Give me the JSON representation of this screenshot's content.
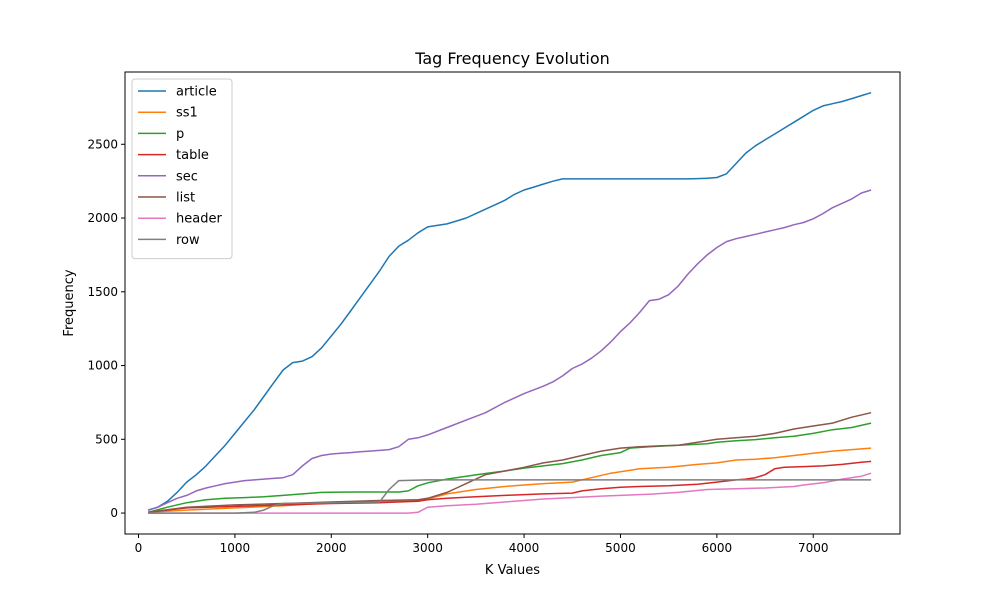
{
  "chart_data": {
    "type": "line",
    "title": "Tag Frequency Evolution",
    "xlabel": "K Values",
    "ylabel": "Frequency",
    "xlim": [
      -140,
      7900
    ],
    "ylim": [
      -142,
      2990
    ],
    "xticks": [
      0,
      1000,
      2000,
      3000,
      4000,
      5000,
      6000,
      7000
    ],
    "yticks": [
      0,
      500,
      1000,
      1500,
      2000,
      2500
    ],
    "grid": false,
    "legend": "top-left",
    "series": [
      {
        "name": "article",
        "color": "#1f77b4",
        "x": [
          100,
          200,
          300,
          400,
          500,
          600,
          700,
          800,
          900,
          1000,
          1100,
          1200,
          1300,
          1400,
          1500,
          1600,
          1700,
          1800,
          1900,
          2000,
          2100,
          2200,
          2300,
          2400,
          2500,
          2600,
          2700,
          2800,
          2900,
          3000,
          3100,
          3200,
          3300,
          3400,
          3500,
          3600,
          3700,
          3800,
          3900,
          4000,
          4100,
          4200,
          4300,
          4400,
          4500,
          4600,
          4700,
          4800,
          4900,
          5000,
          5100,
          5200,
          5300,
          5400,
          5500,
          5600,
          5700,
          5800,
          5900,
          6000,
          6100,
          6200,
          6300,
          6400,
          6500,
          6600,
          6700,
          6800,
          6900,
          7000,
          7100,
          7200,
          7300,
          7400,
          7500,
          7600
        ],
        "y": [
          20,
          40,
          80,
          140,
          210,
          260,
          320,
          390,
          460,
          540,
          620,
          700,
          790,
          880,
          970,
          1020,
          1030,
          1060,
          1120,
          1200,
          1280,
          1370,
          1460,
          1550,
          1640,
          1740,
          1810,
          1850,
          1900,
          1940,
          1950,
          1960,
          1980,
          2000,
          2030,
          2060,
          2090,
          2120,
          2160,
          2190,
          2210,
          2230,
          2250,
          2265,
          2265,
          2265,
          2265,
          2265,
          2265,
          2265,
          2265,
          2265,
          2265,
          2265,
          2265,
          2265,
          2265,
          2267,
          2270,
          2275,
          2300,
          2370,
          2440,
          2490,
          2530,
          2570,
          2610,
          2650,
          2690,
          2730,
          2760,
          2775,
          2790,
          2810,
          2830,
          2850
        ]
      },
      {
        "name": "ss1",
        "color": "#ff7f0e",
        "x": [
          100,
          500,
          1000,
          1500,
          2000,
          2500,
          2900,
          3000,
          3200,
          3500,
          3800,
          4000,
          4200,
          4500,
          4700,
          4900,
          5000,
          5200,
          5500,
          5800,
          6000,
          6200,
          6400,
          6600,
          6800,
          7000,
          7200,
          7400,
          7600
        ],
        "y": [
          5,
          20,
          35,
          50,
          70,
          80,
          85,
          95,
          130,
          160,
          180,
          190,
          200,
          210,
          240,
          270,
          280,
          300,
          310,
          330,
          340,
          360,
          365,
          375,
          390,
          405,
          420,
          430,
          440
        ]
      },
      {
        "name": "p",
        "color": "#2ca02c",
        "x": [
          100,
          300,
          500,
          700,
          900,
          1100,
          1300,
          1500,
          1700,
          1900,
          2100,
          2300,
          2500,
          2700,
          2800,
          2900,
          3000,
          3200,
          3400,
          3600,
          3800,
          4000,
          4200,
          4400,
          4600,
          4800,
          5000,
          5100,
          5300,
          5600,
          5900,
          6000,
          6200,
          6400,
          6600,
          6800,
          7000,
          7200,
          7400,
          7600
        ],
        "y": [
          5,
          40,
          70,
          90,
          100,
          105,
          110,
          120,
          130,
          140,
          142,
          143,
          143,
          143,
          150,
          185,
          205,
          230,
          250,
          268,
          285,
          305,
          320,
          335,
          360,
          390,
          410,
          440,
          450,
          460,
          470,
          480,
          490,
          498,
          510,
          520,
          540,
          565,
          580,
          610
        ]
      },
      {
        "name": "table",
        "color": "#d62728",
        "x": [
          100,
          500,
          1000,
          1500,
          2000,
          2500,
          2900,
          3000,
          3200,
          3500,
          3800,
          4000,
          4200,
          4500,
          4600,
          4800,
          5000,
          5200,
          5500,
          5800,
          6000,
          6200,
          6300,
          6400,
          6500,
          6600,
          6700,
          6900,
          7100,
          7300,
          7500,
          7600
        ],
        "y": [
          5,
          35,
          45,
          55,
          65,
          70,
          80,
          90,
          100,
          110,
          120,
          125,
          130,
          135,
          150,
          165,
          175,
          180,
          185,
          195,
          210,
          225,
          230,
          240,
          260,
          300,
          310,
          315,
          320,
          330,
          345,
          350
        ]
      },
      {
        "name": "sec",
        "color": "#9467bd",
        "x": [
          100,
          200,
          300,
          400,
          500,
          600,
          700,
          800,
          900,
          1000,
          1100,
          1200,
          1300,
          1400,
          1500,
          1600,
          1700,
          1800,
          1900,
          2000,
          2100,
          2200,
          2300,
          2400,
          2500,
          2600,
          2700,
          2800,
          2900,
          3000,
          3200,
          3400,
          3600,
          3800,
          4000,
          4200,
          4300,
          4400,
          4500,
          4600,
          4700,
          4800,
          4900,
          5000,
          5100,
          5200,
          5300,
          5400,
          5500,
          5600,
          5700,
          5800,
          5900,
          6000,
          6100,
          6200,
          6300,
          6400,
          6500,
          6600,
          6700,
          6800,
          6900,
          7000,
          7100,
          7200,
          7300,
          7400,
          7500,
          7600
        ],
        "y": [
          20,
          40,
          70,
          100,
          120,
          150,
          170,
          185,
          200,
          210,
          220,
          225,
          230,
          235,
          240,
          260,
          320,
          370,
          390,
          400,
          405,
          410,
          415,
          420,
          425,
          430,
          450,
          500,
          510,
          530,
          580,
          630,
          680,
          750,
          810,
          860,
          890,
          930,
          980,
          1010,
          1050,
          1100,
          1160,
          1230,
          1290,
          1360,
          1440,
          1450,
          1480,
          1540,
          1620,
          1690,
          1750,
          1800,
          1840,
          1860,
          1875,
          1890,
          1905,
          1920,
          1935,
          1955,
          1970,
          1995,
          2030,
          2070,
          2100,
          2130,
          2170,
          2190
        ]
      },
      {
        "name": "list",
        "color": "#8c564b",
        "x": [
          100,
          500,
          1000,
          1500,
          2000,
          2500,
          2900,
          3000,
          3100,
          3200,
          3300,
          3400,
          3500,
          3600,
          3800,
          4000,
          4200,
          4400,
          4600,
          4800,
          5000,
          5200,
          5400,
          5600,
          5800,
          6000,
          6200,
          6400,
          6600,
          6800,
          7000,
          7200,
          7400,
          7600
        ],
        "y": [
          5,
          40,
          55,
          65,
          75,
          85,
          90,
          100,
          120,
          140,
          170,
          200,
          230,
          260,
          285,
          310,
          340,
          360,
          390,
          420,
          440,
          450,
          455,
          460,
          480,
          500,
          510,
          520,
          540,
          570,
          590,
          610,
          650,
          680
        ]
      },
      {
        "name": "header",
        "color": "#e377c2",
        "x": [
          100,
          1000,
          2000,
          2800,
          2900,
          3000,
          3200,
          3500,
          3800,
          4000,
          4200,
          4500,
          4800,
          5000,
          5300,
          5600,
          5900,
          6200,
          6500,
          6800,
          6900,
          7100,
          7300,
          7500,
          7600
        ],
        "y": [
          0,
          0,
          0,
          0,
          5,
          40,
          50,
          60,
          75,
          85,
          95,
          105,
          115,
          120,
          128,
          140,
          160,
          165,
          170,
          180,
          190,
          205,
          230,
          250,
          270
        ]
      },
      {
        "name": "row",
        "color": "#7f7f7f",
        "x": [
          100,
          1000,
          1200,
          1300,
          1400,
          1500,
          2000,
          2500,
          2600,
          2700,
          3000,
          7600
        ],
        "y": [
          0,
          0,
          5,
          20,
          50,
          65,
          70,
          75,
          160,
          220,
          225,
          225
        ]
      }
    ]
  }
}
